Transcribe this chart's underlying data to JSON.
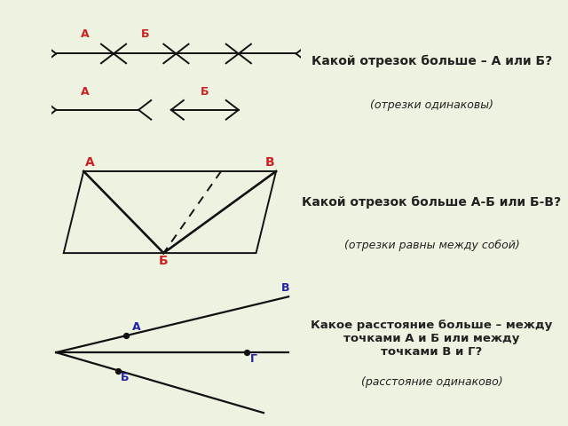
{
  "bg_color": "#eef2e0",
  "panel1_bg": "#ffffff",
  "panel2_bg": "#ffffff",
  "panel3_bg": "#cde8f5",
  "title1": "Какой отрезок больше – А или Б?",
  "sub1": "(отрезки одинаковы)",
  "title2": "Какой отрезок больше А-Б или Б-В?",
  "sub2": "(отрезки равны между собой)",
  "title3": "Какое расстояние больше – между\nточками А и Б или между\nточками В и Г?",
  "sub3": "(расстояние одинаково)",
  "label_color_red": "#cc2222",
  "label_color_blue": "#2222aa",
  "line_color": "#111111",
  "text_color": "#222222"
}
